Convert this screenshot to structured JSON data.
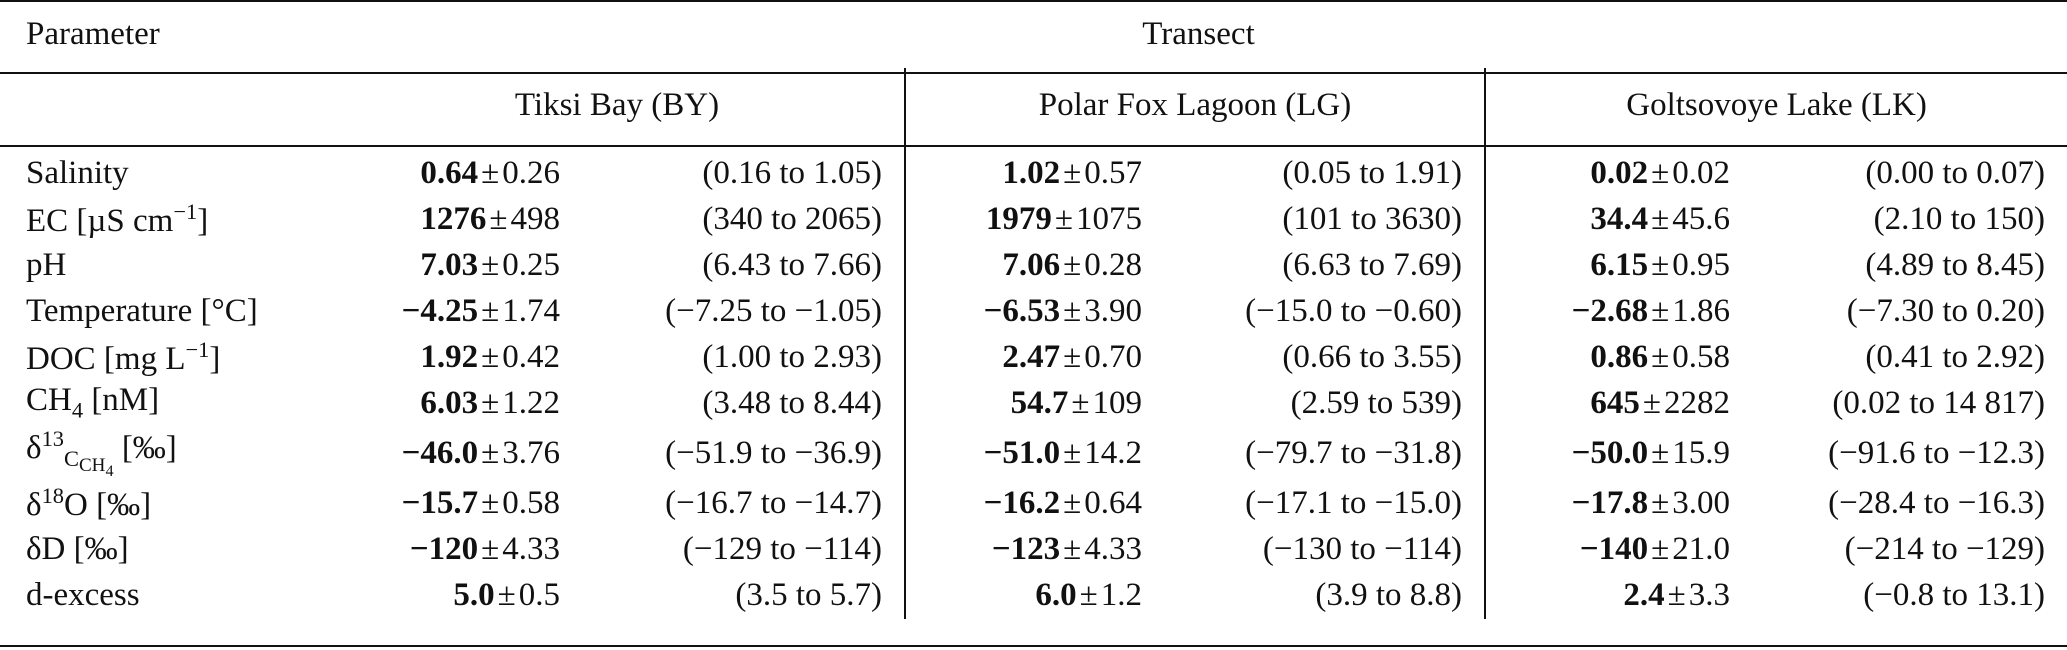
{
  "headers": {
    "parameter": "Parameter",
    "transect": "Transect",
    "groups": [
      "Tiksi Bay (BY)",
      "Polar Fox Lagoon (LG)",
      "Goltsovoye Lake (LK)"
    ]
  },
  "rows": [
    {
      "label_main": "Salinity",
      "label_sup": "",
      "label_sub": "",
      "label_rest": "",
      "cells": [
        {
          "mean": "0.64",
          "sd": "0.26",
          "range": "(0.16 to 1.05)"
        },
        {
          "mean": "1.02",
          "sd": "0.57",
          "range": "(0.05 to 1.91)"
        },
        {
          "mean": "0.02",
          "sd": "0.02",
          "range": "(0.00 to 0.07)"
        }
      ]
    },
    {
      "label_main": "EC [µS cm",
      "label_sup": "−1",
      "label_sub": "",
      "label_rest": "]",
      "cells": [
        {
          "mean": "1276",
          "sd": "498",
          "range": "(340 to 2065)"
        },
        {
          "mean": "1979",
          "sd": "1075",
          "range": "(101 to 3630)"
        },
        {
          "mean": "34.4",
          "sd": "45.6",
          "range": "(2.10 to 150)"
        }
      ]
    },
    {
      "label_main": "pH",
      "label_sup": "",
      "label_sub": "",
      "label_rest": "",
      "cells": [
        {
          "mean": "7.03",
          "sd": "0.25",
          "range": "(6.43 to 7.66)"
        },
        {
          "mean": "7.06",
          "sd": "0.28",
          "range": "(6.63 to 7.69)"
        },
        {
          "mean": "6.15",
          "sd": "0.95",
          "range": "(4.89 to 8.45)"
        }
      ]
    },
    {
      "label_main": "Temperature [°C]",
      "label_sup": "",
      "label_sub": "",
      "label_rest": "",
      "cells": [
        {
          "mean": "−4.25",
          "sd": "1.74",
          "range": "(−7.25 to −1.05)"
        },
        {
          "mean": "−6.53",
          "sd": "3.90",
          "range": "(−15.0 to −0.60)"
        },
        {
          "mean": "−2.68",
          "sd": "1.86",
          "range": "(−7.30 to 0.20)"
        }
      ]
    },
    {
      "label_main": "DOC [mg L",
      "label_sup": "−1",
      "label_sub": "",
      "label_rest": "]",
      "cells": [
        {
          "mean": "1.92",
          "sd": "0.42",
          "range": "(1.00 to 2.93)"
        },
        {
          "mean": "2.47",
          "sd": "0.70",
          "range": "(0.66 to 3.55)"
        },
        {
          "mean": "0.86",
          "sd": "0.58",
          "range": "(0.41 to 2.92)"
        }
      ]
    },
    {
      "label_main": "CH",
      "label_sup": "",
      "label_sub": "4",
      "label_rest": " [nM]",
      "cells": [
        {
          "mean": "6.03",
          "sd": "1.22",
          "range": "(3.48 to 8.44)"
        },
        {
          "mean": "54.7",
          "sd": "109",
          "range": "(2.59 to 539)"
        },
        {
          "mean": "645",
          "sd": "2282",
          "range": "(0.02 to 14 817)"
        }
      ]
    },
    {
      "label_main": "δ",
      "label_sup": "13",
      "label_sub": "CH4",
      "label_rest": " [‰]",
      "cells": [
        {
          "mean": "−46.0",
          "sd": "3.76",
          "range": "(−51.9 to −36.9)"
        },
        {
          "mean": "−51.0",
          "sd": "14.2",
          "range": "(−79.7 to −31.8)"
        },
        {
          "mean": "−50.0",
          "sd": "15.9",
          "range": "(−91.6 to −12.3)"
        }
      ]
    },
    {
      "label_main": "δ",
      "label_sup": "18",
      "label_sub": "",
      "label_rest": "O [‰]",
      "cells": [
        {
          "mean": "−15.7",
          "sd": "0.58",
          "range": "(−16.7 to −14.7)"
        },
        {
          "mean": "−16.2",
          "sd": "0.64",
          "range": "(−17.1 to −15.0)"
        },
        {
          "mean": "−17.8",
          "sd": "3.00",
          "range": "(−28.4 to −16.3)"
        }
      ]
    },
    {
      "label_main": "δD [‰]",
      "label_sup": "",
      "label_sub": "",
      "label_rest": "",
      "cells": [
        {
          "mean": "−120",
          "sd": "4.33",
          "range": "(−129 to −114)"
        },
        {
          "mean": "−123",
          "sd": "4.33",
          "range": "(−130 to −114)"
        },
        {
          "mean": "−140",
          "sd": "21.0",
          "range": "(−214 to −129)"
        }
      ]
    },
    {
      "label_main": "d-excess",
      "label_sup": "",
      "label_sub": "",
      "label_rest": "",
      "cells": [
        {
          "mean": "5.0",
          "sd": "0.5",
          "range": "(3.5 to 5.7)"
        },
        {
          "mean": "6.0",
          "sd": "1.2",
          "range": "(3.9 to 8.8)"
        },
        {
          "mean": "2.4",
          "sd": "3.3",
          "range": "(−0.8 to 13.1)"
        }
      ]
    }
  ]
}
